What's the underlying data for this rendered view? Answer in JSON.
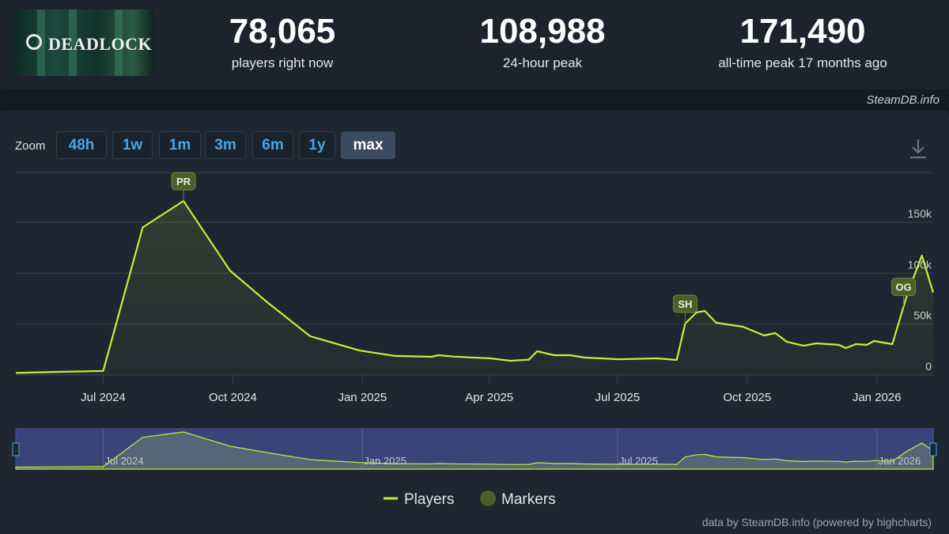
{
  "header": {
    "logo": "DEADLOCK",
    "stats": [
      {
        "value": "78,065",
        "label": "players right now"
      },
      {
        "value": "108,988",
        "label": "24-hour peak"
      },
      {
        "value": "171,490",
        "label": "all-time peak 17 months ago"
      }
    ]
  },
  "source": "SteamDB.info",
  "zoom": {
    "label": "Zoom",
    "buttons": [
      "48h",
      "1w",
      "1m",
      "3m",
      "6m",
      "1y",
      "max"
    ],
    "selected": 6
  },
  "chart_data": {
    "type": "line",
    "x": [
      "2024-04-30",
      "2024-05-28",
      "2024-07-01",
      "2024-07-29",
      "2024-08-27",
      "2024-09-29",
      "2024-10-26",
      "2024-11-25",
      "2024-12-30",
      "2025-01-24",
      "2025-02-19",
      "2025-02-24",
      "2025-03-07",
      "2025-04-02",
      "2025-04-16",
      "2025-04-29",
      "2025-05-05",
      "2025-05-17",
      "2025-05-28",
      "2025-06-08",
      "2025-07-02",
      "2025-07-29",
      "2025-08-12",
      "2025-08-18",
      "2025-08-26",
      "2025-09-01",
      "2025-09-09",
      "2025-09-28",
      "2025-10-13",
      "2025-10-21",
      "2025-10-29",
      "2025-11-10",
      "2025-11-19",
      "2025-12-05",
      "2025-12-10",
      "2025-12-17",
      "2025-12-25",
      "2025-12-30",
      "2026-01-12",
      "2026-01-23",
      "2026-02-02",
      "2026-02-10"
    ],
    "series": [
      {
        "name": "Players",
        "color": "#c3f035",
        "values": [
          2000,
          3000,
          4000,
          145000,
          171000,
          102600,
          70800,
          38000,
          24000,
          18700,
          17900,
          19400,
          18000,
          16300,
          14000,
          15000,
          23300,
          19400,
          19400,
          17100,
          15500,
          16300,
          14800,
          50500,
          61400,
          63000,
          51300,
          47400,
          38900,
          41200,
          32700,
          28800,
          31100,
          29600,
          26400,
          30300,
          29600,
          33400,
          30300,
          81000,
          117400,
          81000
        ]
      }
    ],
    "markers": {
      "name": "Markers",
      "color": "#4b5f2b",
      "items": [
        {
          "label": "PR",
          "x": "2024-08-27"
        },
        {
          "label": "SH",
          "x": "2025-08-18"
        },
        {
          "label": "OG",
          "x": "2026-01-20"
        }
      ]
    },
    "xlim": [
      "2024-04-30",
      "2026-02-10"
    ],
    "xticks": [
      {
        "value": "2024-07-01",
        "label": "Jul 2024"
      },
      {
        "value": "2024-10-01",
        "label": "Oct 2024"
      },
      {
        "value": "2025-01-01",
        "label": "Jan 2025"
      },
      {
        "value": "2025-04-01",
        "label": "Apr 2025"
      },
      {
        "value": "2025-07-01",
        "label": "Jul 2025"
      },
      {
        "value": "2025-10-01",
        "label": "Oct 2025"
      },
      {
        "value": "2026-01-01",
        "label": "Jan 2026"
      }
    ],
    "ylim": [
      0,
      199000
    ],
    "yticks": [
      0,
      {
        "value": 50000,
        "label": "50k"
      },
      {
        "value": 100000,
        "label": "100k"
      },
      {
        "value": 150000,
        "label": "150k"
      }
    ],
    "grid": true,
    "navigator_xticks": [
      {
        "value": "2024-07-01",
        "label": "Jul 2024"
      },
      {
        "value": "2025-01-01",
        "label": "Jan 2025"
      },
      {
        "value": "2025-07-01",
        "label": "Jul 2025"
      },
      {
        "value": "2026-01-01",
        "label": "Jan 2026"
      }
    ],
    "legend": "bottom"
  },
  "credits": "data by SteamDB.info (powered by highcharts)"
}
